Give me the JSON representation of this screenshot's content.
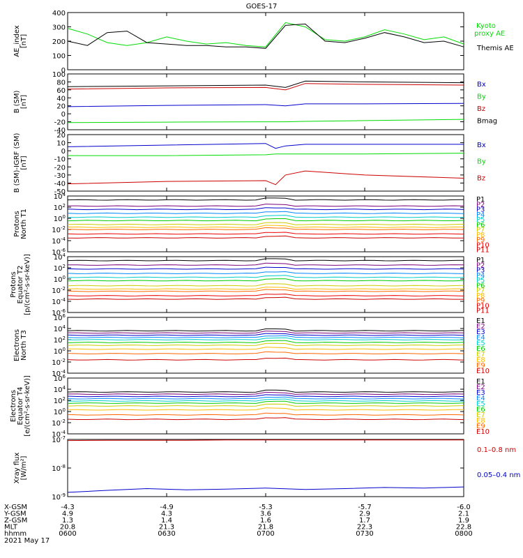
{
  "title": "GOES-17",
  "date": "2021 May 17",
  "colors": {
    "black": "#000000",
    "green": "#00dd00",
    "blue": "#0000cc",
    "red": "#cc0000"
  },
  "ephemeris": {
    "row_labels": [
      "X-GSM",
      "Y-GSM",
      "Z-GSM",
      "MLT",
      "hhmm"
    ],
    "columns": [
      [
        "-4.3",
        "4.9",
        "1.3",
        "20.8",
        "0600"
      ],
      [
        "-4.9",
        "4.3",
        "1.4",
        "21.3",
        "0630"
      ],
      [
        "-5.3",
        "3.6",
        "1.6",
        "21.8",
        "0700"
      ],
      [
        "-5.7",
        "2.9",
        "1.7",
        "22.3",
        "0730"
      ],
      [
        "-6.0",
        "2.1",
        "1.9",
        "22.8",
        "0800"
      ]
    ]
  },
  "chart_data": [
    {
      "id": "ae",
      "type": "line",
      "ylabel": "AE_index\n[nT]",
      "ylim": [
        0,
        400
      ],
      "ticks": [
        "0",
        "100",
        "200",
        "300",
        "400"
      ],
      "x_hours": [
        6.0,
        6.1,
        6.2,
        6.3,
        6.4,
        6.5,
        6.6,
        6.7,
        6.8,
        6.9,
        7.0,
        7.1,
        7.2,
        7.3,
        7.4,
        7.5,
        7.6,
        7.7,
        7.8,
        7.9,
        8.0
      ],
      "series": [
        {
          "name": "Kyoto proxy AE",
          "color": "green",
          "values": [
            290,
            250,
            190,
            170,
            190,
            230,
            200,
            180,
            190,
            170,
            160,
            330,
            300,
            210,
            200,
            230,
            280,
            250,
            210,
            230,
            180
          ]
        },
        {
          "name": "Themis AE",
          "color": "black",
          "values": [
            200,
            170,
            260,
            270,
            190,
            180,
            170,
            170,
            160,
            160,
            150,
            310,
            320,
            200,
            190,
            220,
            260,
            230,
            190,
            200,
            160
          ]
        }
      ]
    },
    {
      "id": "bsm",
      "type": "line",
      "ylabel": "B (SM)\n[nT]",
      "ylim": [
        -40,
        100
      ],
      "ticks": [
        "-40",
        "-20",
        "0",
        "20",
        "40",
        "60",
        "80",
        "100"
      ],
      "x_hours": [
        6.0,
        6.5,
        7.0,
        7.1,
        7.2,
        7.5,
        8.0
      ],
      "series": [
        {
          "name": "Bx",
          "color": "blue",
          "values": [
            18,
            21,
            23,
            20,
            25,
            25,
            26
          ]
        },
        {
          "name": "By",
          "color": "green",
          "values": [
            -22,
            -21,
            -20,
            -20,
            -19,
            -17,
            -14
          ]
        },
        {
          "name": "Bz",
          "color": "red",
          "values": [
            62,
            65,
            66,
            60,
            76,
            74,
            72
          ]
        },
        {
          "name": "Bmag",
          "color": "black",
          "values": [
            68,
            70,
            72,
            66,
            82,
            80,
            78
          ]
        }
      ]
    },
    {
      "id": "bigrf",
      "type": "line",
      "ylabel": "B (SM)-IGRF (SM)\n[nT]",
      "ylim": [
        -50,
        20
      ],
      "ticks": [
        "-50",
        "-40",
        "-30",
        "-20",
        "-10",
        "0",
        "10",
        "20"
      ],
      "x_hours": [
        6.0,
        6.5,
        7.0,
        7.05,
        7.1,
        7.2,
        7.5,
        8.0
      ],
      "series": [
        {
          "name": "Bx",
          "color": "blue",
          "values": [
            5,
            7,
            9,
            3,
            6,
            8,
            8,
            8
          ]
        },
        {
          "name": "By",
          "color": "green",
          "values": [
            -6,
            -6,
            -5,
            -4,
            -4,
            -4,
            -4,
            -3
          ]
        },
        {
          "name": "Bz",
          "color": "red",
          "values": [
            -41,
            -38,
            -37,
            -42,
            -30,
            -25,
            -30,
            -34
          ]
        }
      ]
    },
    {
      "id": "pn",
      "type": "line",
      "ylabel": "Protons\nNorth T1",
      "ylim": [
        -6,
        4
      ],
      "log": true,
      "ticks": [
        "10^4",
        "10^2",
        "10^0",
        "10^-2",
        "10^-4",
        "10^-6"
      ],
      "channels": [
        "P1",
        "P2",
        "P3",
        "P4",
        "P5",
        "P6",
        "P7",
        "P8",
        "P9",
        "P10",
        "P11"
      ],
      "channel_colors": [
        "#000000",
        "#7a007a",
        "#0000cc",
        "#0088ff",
        "#00cccc",
        "#00cc00",
        "#cccc00",
        "#ffbb00",
        "#ff6600",
        "#ee0000",
        "#cc0000"
      ],
      "levels": [
        3.3,
        2.2,
        1.6,
        0.9,
        0.2,
        -0.4,
        -1.1,
        -1.6,
        -2.0,
        -2.8,
        -3.5
      ]
    },
    {
      "id": "pe",
      "type": "line",
      "ylabel": "Protons\nEquator T2\n[p/(cm²-s-sr-keV)]",
      "ylim": [
        -6,
        4
      ],
      "log": true,
      "ticks": [
        "10^4",
        "10^2",
        "10^0",
        "10^-2",
        "10^-4",
        "10^-6"
      ],
      "channels": [
        "P1",
        "P2",
        "P3",
        "P4",
        "P5",
        "P6",
        "P7",
        "P8",
        "P9",
        "P10",
        "P11"
      ],
      "channel_colors": [
        "#000000",
        "#7a007a",
        "#0000cc",
        "#0088ff",
        "#00cccc",
        "#00cc00",
        "#cccc00",
        "#ffbb00",
        "#ff6600",
        "#ee0000",
        "#cc0000"
      ],
      "levels": [
        3.3,
        2.5,
        1.8,
        1.0,
        0.3,
        -0.3,
        -1.2,
        -1.8,
        -2.2,
        -3.0,
        -3.6
      ]
    },
    {
      "id": "en",
      "type": "line",
      "ylabel": "Electrons\nNorth T3",
      "ylim": [
        -4,
        6
      ],
      "log": true,
      "ticks": [
        "10^6",
        "10^4",
        "10^2",
        "10^0",
        "10^-2",
        "10^-4"
      ],
      "channels": [
        "E1",
        "E2",
        "E3",
        "E4",
        "E5",
        "E6",
        "E7",
        "E8",
        "E9",
        "E10"
      ],
      "channel_colors": [
        "#000000",
        "#7a007a",
        "#0000cc",
        "#0088ff",
        "#00cccc",
        "#00cc00",
        "#cccc00",
        "#ffbb00",
        "#ff6600",
        "#cc0000"
      ],
      "levels": [
        3.6,
        3.2,
        2.8,
        2.4,
        2.0,
        1.5,
        1.0,
        0.3,
        -0.5,
        -1.6
      ]
    },
    {
      "id": "ee",
      "type": "line",
      "ylabel": "Electrons\nEquator T4\n[e/(cm²-s-sr-keV)]",
      "ylim": [
        -4,
        6
      ],
      "log": true,
      "ticks": [
        "10^6",
        "10^4",
        "10^2",
        "10^0",
        "10^-2",
        "10^-4"
      ],
      "channels": [
        "E1",
        "E2",
        "E3",
        "E4",
        "E5",
        "E6",
        "E7",
        "E8",
        "E9",
        "E10"
      ],
      "channel_colors": [
        "#000000",
        "#7a007a",
        "#0000cc",
        "#0088ff",
        "#00cccc",
        "#00cc00",
        "#cccc00",
        "#ffbb00",
        "#ff6600",
        "#cc0000"
      ],
      "levels": [
        3.5,
        3.1,
        2.7,
        2.3,
        1.9,
        1.5,
        1.0,
        0.3,
        -0.6,
        -1.4
      ]
    },
    {
      "id": "xray",
      "type": "line",
      "ylabel": "Xray flux\n[W/m²]",
      "ylim": [
        -9,
        -7
      ],
      "log": true,
      "ticks": [
        "10^-7",
        "10^-8",
        "10^-9"
      ],
      "series": [
        {
          "name": "0.1–0.8 nm",
          "color": "red",
          "values": [
            -7.04,
            -7.03,
            -7.03,
            -7.03,
            -7.02,
            -7.02,
            -7.02,
            -7.02,
            -7.02,
            -7.02,
            -7.02
          ]
        },
        {
          "name": "0.05–0.4 nm",
          "color": "blue",
          "values": [
            -8.85,
            -8.78,
            -8.72,
            -8.76,
            -8.74,
            -8.7,
            -8.75,
            -8.72,
            -8.68,
            -8.7,
            -8.66
          ]
        }
      ]
    }
  ]
}
